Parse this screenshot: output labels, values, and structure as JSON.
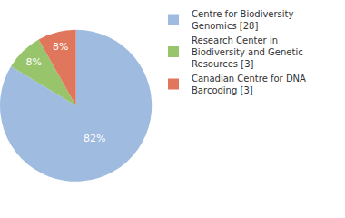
{
  "chart_data": {
    "type": "pie",
    "categories": [
      "Centre for Biodiversity Genomics [28]",
      "Research Center in Biodiversity and Genetic Resources [3]",
      "Canadian Centre for DNA Barcoding [3]"
    ],
    "values": [
      82,
      8,
      8
    ],
    "value_labels": [
      "82%",
      "8%",
      "8%"
    ],
    "colors": [
      "#9fbbe0",
      "#98c46c",
      "#e0775d"
    ],
    "data_labels": true,
    "legend": "top-right"
  }
}
